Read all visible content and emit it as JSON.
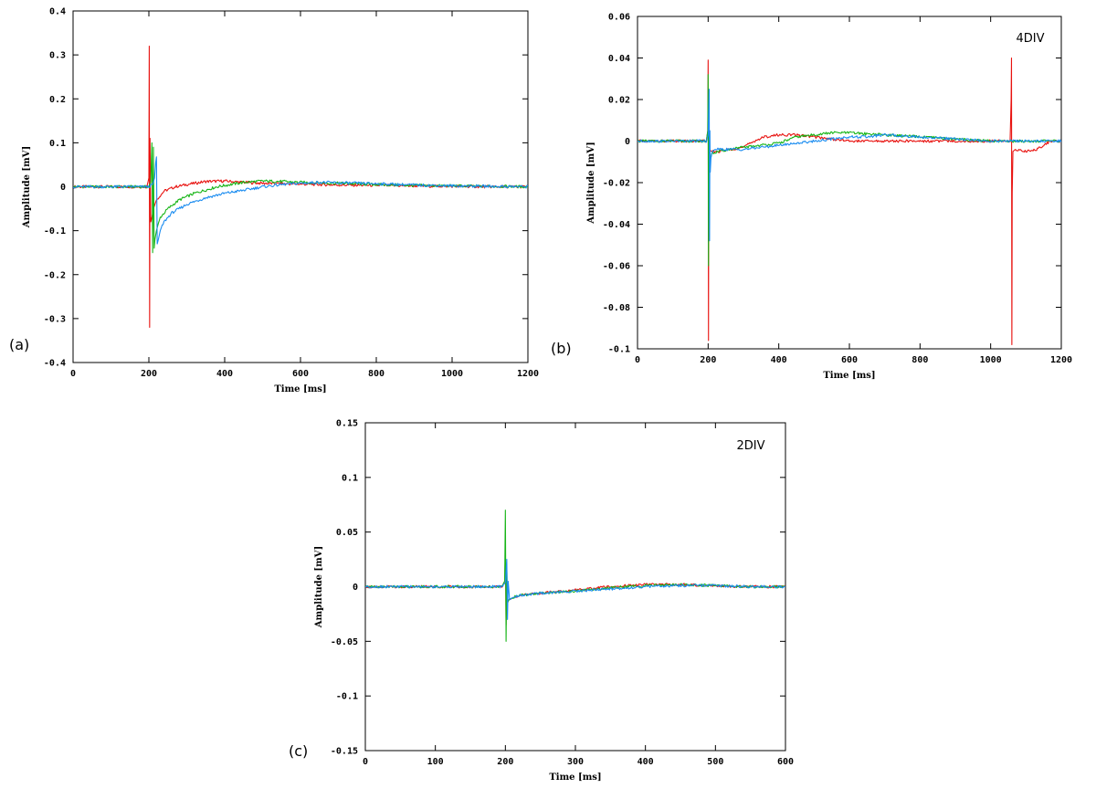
{
  "colors": {
    "red": "#e8120f",
    "green": "#17b517",
    "blue": "#1a8cf0"
  },
  "chart_data": [
    {
      "id": "a",
      "type": "line",
      "panel_label": "(a)",
      "annotation": "",
      "title": "",
      "xlabel": "Time [ms]",
      "ylabel": "Amplitude [mV]",
      "xlim": [
        0,
        1200
      ],
      "ylim": [
        -0.4,
        0.4
      ],
      "xticks": [
        0,
        200,
        400,
        600,
        800,
        1000,
        1200
      ],
      "yticks": [
        -0.4,
        -0.3,
        -0.2,
        -0.1,
        0,
        0.1,
        0.2,
        0.3,
        0.4
      ],
      "ytick_labels": [
        "-0.4",
        "-0.3",
        "-0.2",
        "-0.1",
        "0",
        "0.1",
        "0.2",
        "0.3",
        "0.4"
      ],
      "grid": false,
      "series": [
        {
          "color": "red",
          "x": [
            0,
            195,
            200,
            201,
            202,
            203,
            205,
            208,
            212,
            220,
            240,
            270,
            300,
            350,
            400,
            450,
            500,
            600,
            700,
            800,
            900,
            1000,
            1100,
            1200
          ],
          "y": [
            0,
            0,
            0.02,
            0.32,
            -0.32,
            0.11,
            -0.08,
            -0.07,
            -0.05,
            -0.03,
            -0.01,
            0.0,
            0.005,
            0.012,
            0.013,
            0.01,
            0.008,
            0.006,
            0.004,
            0.003,
            0.002,
            0.001,
            0.0,
            0.0
          ]
        },
        {
          "color": "green",
          "x": [
            0,
            200,
            205,
            208,
            210,
            212,
            214,
            216,
            220,
            230,
            250,
            280,
            320,
            380,
            450,
            500,
            550,
            600,
            700,
            800,
            900,
            1000,
            1100,
            1200
          ],
          "y": [
            0,
            0,
            0.01,
            0.1,
            -0.15,
            0.09,
            -0.14,
            -0.12,
            -0.1,
            -0.07,
            -0.05,
            -0.03,
            -0.015,
            0.0,
            0.01,
            0.013,
            0.012,
            0.01,
            0.008,
            0.005,
            0.003,
            0.002,
            0.001,
            0.0
          ]
        },
        {
          "color": "blue",
          "x": [
            0,
            200,
            210,
            215,
            218,
            220,
            222,
            225,
            230,
            240,
            260,
            300,
            350,
            400,
            450,
            500,
            550,
            600,
            650,
            700,
            800,
            900,
            1000,
            1100,
            1200
          ],
          "y": [
            0,
            0,
            0.005,
            0.02,
            0.055,
            0.068,
            -0.13,
            -0.12,
            -0.1,
            -0.08,
            -0.06,
            -0.04,
            -0.025,
            -0.015,
            -0.008,
            0.0,
            0.005,
            0.008,
            0.01,
            0.009,
            0.007,
            0.004,
            0.002,
            0.001,
            0.0
          ]
        }
      ]
    },
    {
      "id": "b",
      "type": "line",
      "panel_label": "(b)",
      "annotation": "4DIV",
      "title": "",
      "xlabel": "Time [ms]",
      "ylabel": "Amplitude [mV]",
      "xlim": [
        0,
        1200
      ],
      "ylim": [
        -0.1,
        0.06
      ],
      "xticks": [
        0,
        200,
        400,
        600,
        800,
        1000,
        1200
      ],
      "yticks": [
        -0.1,
        -0.08,
        -0.06,
        -0.04,
        -0.02,
        0,
        0.02,
        0.04,
        0.06
      ],
      "ytick_labels": [
        "-0.1",
        "-0.08",
        "-0.06",
        "-0.04",
        "-0.02",
        "0",
        "0.02",
        "0.04",
        "0.06"
      ],
      "grid": false,
      "series": [
        {
          "color": "red",
          "x": [
            0,
            195,
            199,
            200,
            201,
            202,
            203,
            210,
            230,
            260,
            300,
            330,
            360,
            400,
            450,
            500,
            550,
            600,
            700,
            800,
            900,
            1000,
            1055,
            1058,
            1059,
            1060,
            1061,
            1063,
            1070,
            1100,
            1130,
            1150,
            1170,
            1200
          ],
          "y": [
            0,
            0,
            0.005,
            0.039,
            -0.096,
            0.02,
            -0.004,
            -0.005,
            -0.005,
            -0.004,
            -0.003,
            0.0,
            0.002,
            0.003,
            0.003,
            0.002,
            0.001,
            0.0,
            0.0,
            0.0,
            0.0,
            0.0,
            0.0,
            0.02,
            0.04,
            -0.098,
            -0.025,
            -0.005,
            -0.004,
            -0.005,
            -0.004,
            -0.002,
            0.0,
            0.0
          ]
        },
        {
          "color": "green",
          "x": [
            0,
            195,
            199,
            200,
            201,
            202,
            203,
            205,
            210,
            230,
            260,
            300,
            350,
            400,
            450,
            500,
            550,
            600,
            700,
            800,
            900,
            1000,
            1100,
            1200
          ],
          "y": [
            0,
            0,
            0.005,
            0.032,
            -0.06,
            0.005,
            -0.02,
            -0.01,
            -0.006,
            -0.005,
            -0.004,
            -0.003,
            -0.002,
            -0.001,
            0.002,
            0.003,
            0.004,
            0.004,
            0.003,
            0.002,
            0.001,
            0.0,
            0.0,
            0.0
          ]
        },
        {
          "color": "blue",
          "x": [
            0,
            195,
            200,
            203,
            204,
            205,
            206,
            208,
            212,
            220,
            240,
            260,
            300,
            350,
            400,
            450,
            500,
            550,
            600,
            650,
            700,
            800,
            900,
            1000,
            1100,
            1200
          ],
          "y": [
            0,
            0,
            0.003,
            0.025,
            -0.048,
            0.005,
            -0.015,
            -0.008,
            -0.005,
            -0.004,
            -0.004,
            -0.004,
            -0.004,
            -0.003,
            -0.002,
            -0.001,
            0.0,
            0.001,
            0.002,
            0.002,
            0.003,
            0.002,
            0.001,
            0.0,
            0.0,
            0.0
          ]
        }
      ]
    },
    {
      "id": "c",
      "type": "line",
      "panel_label": "(c)",
      "annotation": "2DIV",
      "title": "",
      "xlabel": "Time [ms]",
      "ylabel": "Amplitude [mV]",
      "xlim": [
        0,
        600
      ],
      "ylim": [
        -0.15,
        0.15
      ],
      "xticks": [
        0,
        100,
        200,
        300,
        400,
        500,
        600
      ],
      "yticks": [
        -0.15,
        -0.1,
        -0.05,
        0,
        0.05,
        0.1,
        0.15
      ],
      "ytick_labels": [
        "-0.15",
        "-0.1",
        "-0.05",
        "0",
        "0.05",
        "0.1",
        "0.15"
      ],
      "grid": false,
      "series": [
        {
          "color": "red",
          "x": [
            0,
            195,
            199,
            200,
            201,
            202,
            203,
            205,
            210,
            220,
            250,
            300,
            350,
            400,
            450,
            500,
            550,
            600
          ],
          "y": [
            0,
            0,
            0.005,
            0.03,
            -0.035,
            0.01,
            -0.015,
            -0.012,
            -0.01,
            -0.008,
            -0.006,
            -0.003,
            0.0,
            0.002,
            0.002,
            0.001,
            0.0,
            0.0
          ]
        },
        {
          "color": "green",
          "x": [
            0,
            195,
            199,
            200,
            201,
            202,
            203,
            205,
            210,
            220,
            250,
            300,
            350,
            400,
            450,
            500,
            550,
            600
          ],
          "y": [
            0,
            0,
            0.005,
            0.07,
            -0.05,
            0.02,
            -0.015,
            -0.012,
            -0.01,
            -0.008,
            -0.006,
            -0.004,
            -0.001,
            0.001,
            0.002,
            0.001,
            0.0,
            0.0
          ]
        },
        {
          "color": "blue",
          "x": [
            0,
            195,
            200,
            202,
            203,
            204,
            206,
            210,
            220,
            250,
            300,
            350,
            400,
            450,
            500,
            550,
            600
          ],
          "y": [
            0,
            0,
            0.004,
            0.025,
            -0.03,
            0.005,
            -0.012,
            -0.01,
            -0.008,
            -0.006,
            -0.004,
            -0.002,
            0.0,
            0.001,
            0.001,
            0.0,
            0.0
          ]
        }
      ]
    }
  ]
}
